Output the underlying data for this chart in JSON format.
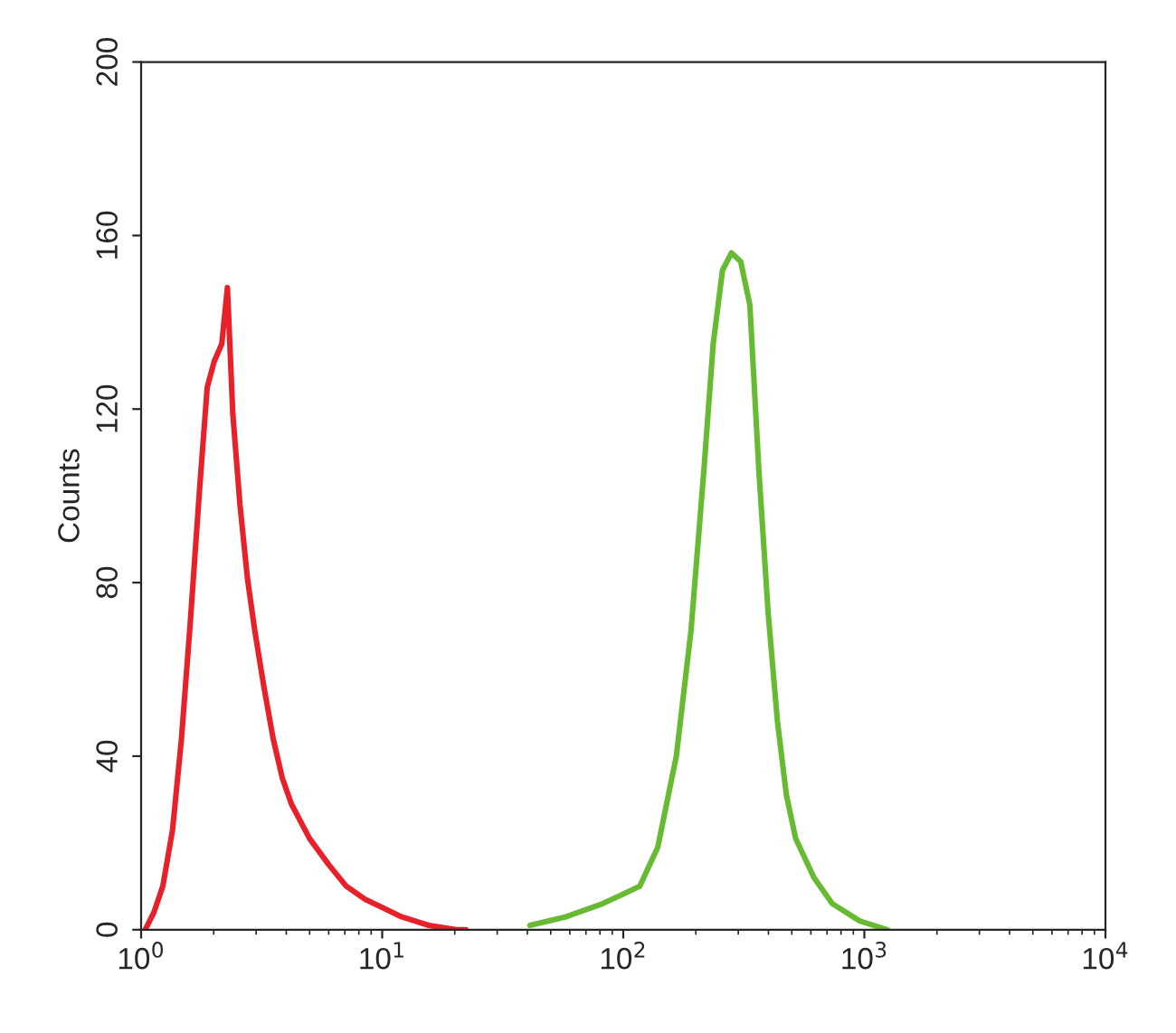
{
  "chart_data": {
    "type": "line",
    "ylabel": "Counts",
    "log": "x",
    "grid": false,
    "legend": false,
    "xlim": [
      1,
      10000
    ],
    "ylim": [
      0,
      200
    ],
    "xticks": [
      {
        "value": 1,
        "label": "10$^{0}$"
      },
      {
        "value": 10,
        "label": "10$^{1}$"
      },
      {
        "value": 100,
        "label": "10$^{2}$"
      },
      {
        "value": 1000,
        "label": "10$^{3}$"
      },
      {
        "value": 10000,
        "label": "10$^{4}$"
      }
    ],
    "yticks": [
      0,
      40,
      80,
      120,
      160,
      200
    ],
    "series": [
      {
        "color": "#e8202a",
        "x": [
          1.04,
          1.13,
          1.23,
          1.35,
          1.47,
          1.6,
          1.75,
          1.88,
          2.01,
          2.16,
          2.28,
          2.4,
          2.57,
          2.76,
          2.96,
          3.23,
          3.53,
          3.85,
          4.2,
          5.0,
          6.0,
          7.1,
          8.5,
          10.1,
          12.0,
          15.6,
          20.3,
          22.2
        ],
        "values": [
          0,
          4,
          10,
          23,
          44,
          71,
          102,
          125,
          131,
          135,
          148,
          119,
          98,
          81,
          69,
          56,
          44,
          35,
          29,
          21,
          15,
          10,
          7,
          5,
          3,
          1,
          0,
          0
        ]
      },
      {
        "color": "#66bb33",
        "x": [
          41,
          58,
          82,
          98,
          117,
          139,
          166,
          191,
          216,
          236,
          258,
          281,
          307,
          335,
          365,
          399,
          436,
          475,
          519,
          618,
          736,
          957,
          1245
        ],
        "values": [
          1,
          3,
          6,
          8,
          10,
          19,
          40,
          69,
          106,
          135,
          152,
          156,
          154,
          144,
          106,
          73,
          48,
          31,
          21,
          12,
          6,
          2,
          0
        ]
      }
    ]
  }
}
